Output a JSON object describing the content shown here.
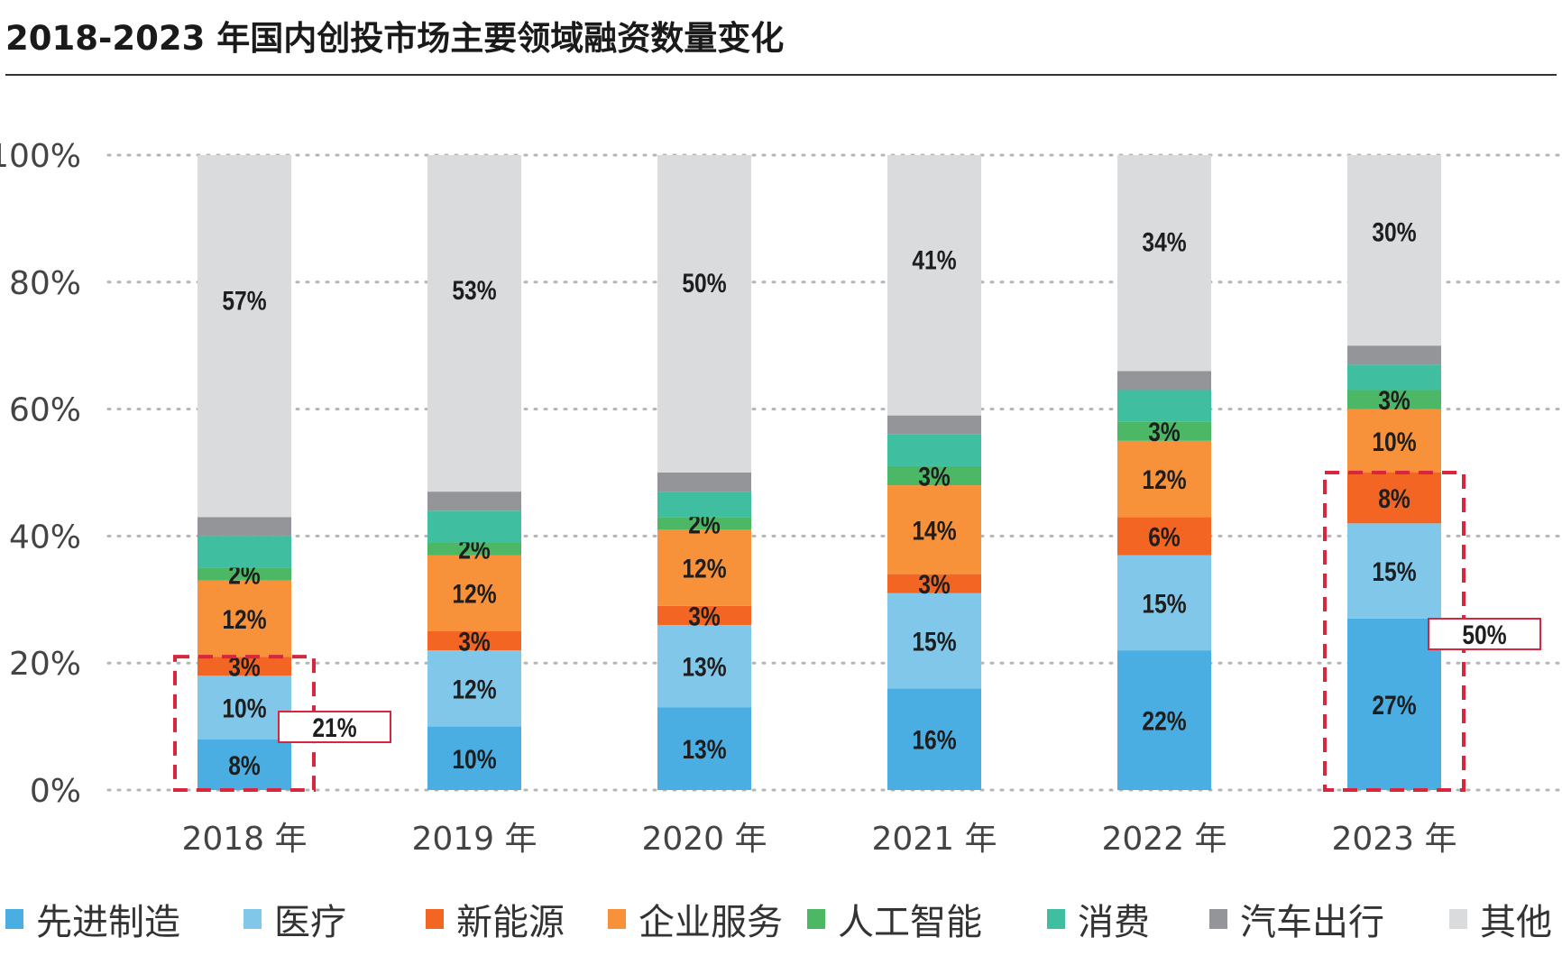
{
  "title": "2018-2023 年国内创投市场主要领域融资数量变化",
  "chart_data": {
    "type": "bar",
    "stacked": true,
    "title": "2018-2023 年国内创投市场主要领域融资数量变化",
    "categories": [
      "2018 年",
      "2019 年",
      "2020 年",
      "2021 年",
      "2022 年",
      "2023 年"
    ],
    "ylim": [
      0,
      100
    ],
    "yticks": [
      "0%",
      "20%",
      "40%",
      "60%",
      "80%",
      "100%"
    ],
    "grid": true,
    "legend_position": "bottom",
    "series": [
      {
        "name": "先进制造",
        "color": "#4aaee3",
        "values": [
          8,
          10,
          13,
          16,
          22,
          27
        ],
        "labels": [
          "8%",
          "10%",
          "13%",
          "16%",
          "22%",
          "27%"
        ]
      },
      {
        "name": "医疗",
        "color": "#80c7ea",
        "values": [
          10,
          12,
          13,
          15,
          15,
          15
        ],
        "labels": [
          "10%",
          "12%",
          "13%",
          "15%",
          "15%",
          "15%"
        ]
      },
      {
        "name": "新能源",
        "color": "#f26522",
        "values": [
          3,
          3,
          3,
          3,
          6,
          8
        ],
        "labels": [
          "3%",
          "3%",
          "3%",
          "3%",
          "6%",
          "8%"
        ]
      },
      {
        "name": "企业服务",
        "color": "#f7923a",
        "values": [
          12,
          12,
          12,
          14,
          12,
          10
        ],
        "labels": [
          "12%",
          "12%",
          "12%",
          "14%",
          "12%",
          "10%"
        ]
      },
      {
        "name": "人工智能",
        "color": "#4cb866",
        "values": [
          2,
          2,
          2,
          3,
          3,
          3
        ],
        "labels": [
          "2%",
          "2%",
          "2%",
          "3%",
          "3%",
          "3%"
        ]
      },
      {
        "name": "消费",
        "color": "#3fbf9f",
        "values": [
          5,
          5,
          4,
          5,
          5,
          4
        ],
        "labels": [
          "",
          "",
          "",
          "",
          "",
          ""
        ]
      },
      {
        "name": "汽车出行",
        "color": "#939598",
        "values": [
          3,
          3,
          3,
          3,
          3,
          3
        ],
        "labels": [
          "",
          "",
          "",
          "",
          "",
          ""
        ]
      },
      {
        "name": "其他",
        "color": "#d9dbdd",
        "values": [
          57,
          53,
          50,
          41,
          34,
          30
        ],
        "labels": [
          "57%",
          "53%",
          "50%",
          "41%",
          "34%",
          "30%"
        ]
      }
    ],
    "annotations": [
      {
        "category": "2018 年",
        "range": [
          0,
          21
        ],
        "label": "21%",
        "color": "#d7263d"
      },
      {
        "category": "2023 年",
        "range": [
          0,
          50
        ],
        "label": "50%",
        "color": "#d7263d"
      }
    ]
  }
}
